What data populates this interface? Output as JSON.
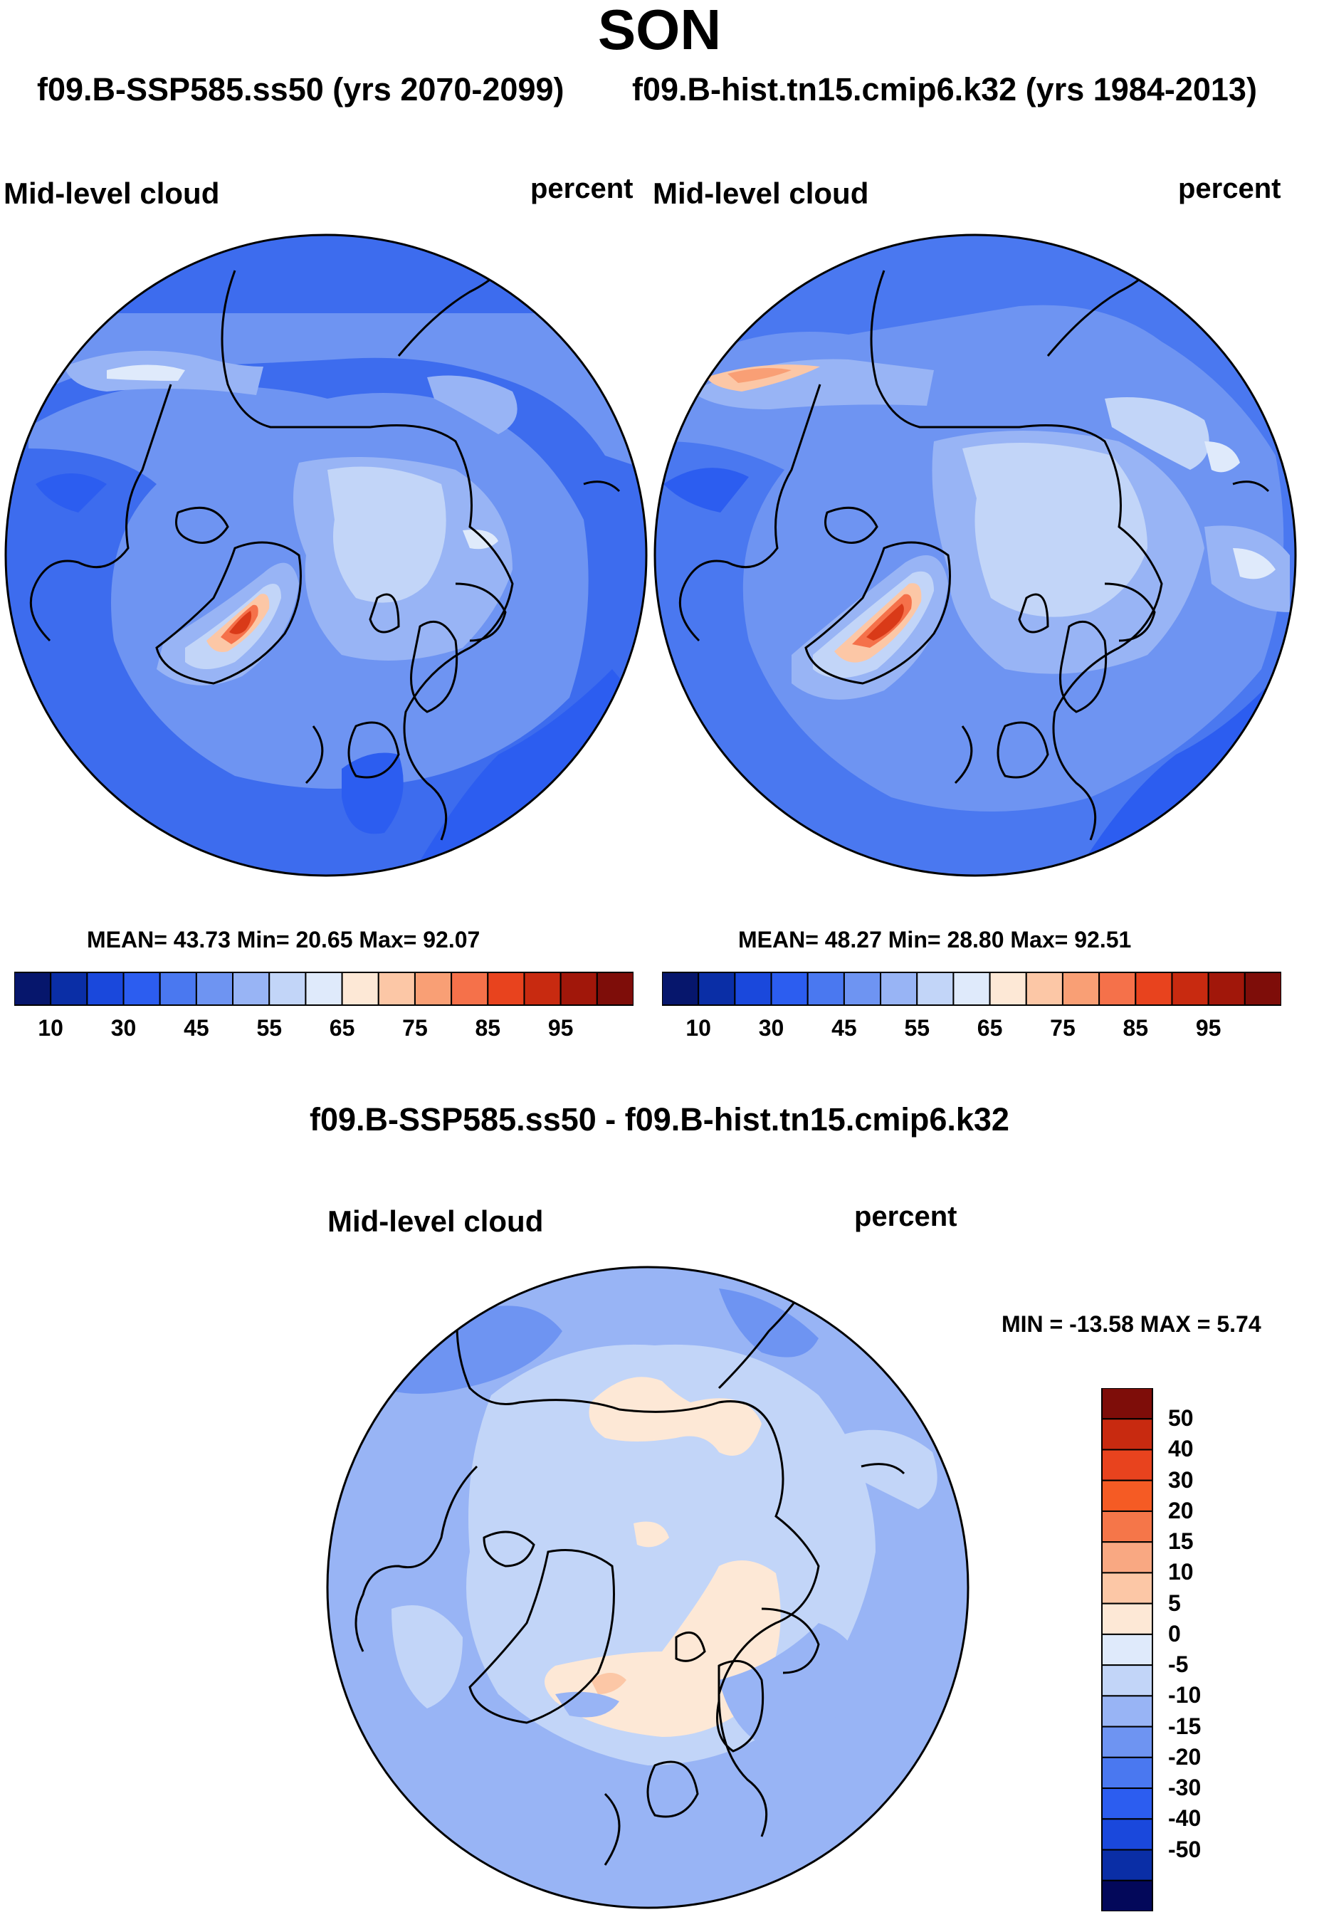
{
  "title": "SON",
  "subtitles": {
    "left": "f09.B-SSP585.ss50 (yrs 2070-2099)",
    "right": "f09.B-hist.tn15.cmip6.k32 (yrs 1984-2013)"
  },
  "panels": [
    {
      "variable": "Mid-level cloud",
      "units": "percent",
      "stats": "MEAN=  43.73  Min=  20.65  Max=  92.07"
    },
    {
      "variable": "Mid-level cloud",
      "units": "percent",
      "stats": "MEAN=  48.27  Min=  28.80  Max=  92.51"
    }
  ],
  "difference": {
    "title": "f09.B-SSP585.ss50 - f09.B-hist.tn15.cmip6.k32",
    "variable": "Mid-level cloud",
    "units": "percent",
    "stats": "MIN = -13.58 MAX =   5.74"
  },
  "colorbar_abs": {
    "colors": [
      "#06166c",
      "#0a2ea6",
      "#1a48dc",
      "#2c5df0",
      "#4a78f0",
      "#6e94f2",
      "#98b4f5",
      "#c2d5f8",
      "#dfeafb",
      "#fde8d6",
      "#fcc7a6",
      "#f99f75",
      "#f5714a",
      "#e8431e",
      "#c82a10",
      "#a1170a",
      "#7e0d09"
    ],
    "labels": [
      "10",
      "30",
      "45",
      "55",
      "65",
      "75",
      "85",
      "95"
    ]
  },
  "colorbar_diff": {
    "colors": [
      "#03085a",
      "#0a2ea6",
      "#1a48dc",
      "#2c5df0",
      "#4a78f0",
      "#6e94f2",
      "#98b4f5",
      "#c2d5f8",
      "#dfeafb",
      "#fde8d6",
      "#fcc7a6",
      "#f9a882",
      "#f57649",
      "#f55b24",
      "#e8431e",
      "#c82a10",
      "#7e0d09"
    ],
    "labels": [
      "50",
      "40",
      "30",
      "20",
      "15",
      "10",
      "5",
      "0",
      "-5",
      "-10",
      "-15",
      "-20",
      "-30",
      "-40",
      "-50"
    ]
  },
  "colors": {
    "ocean_blue": "#3d6cee",
    "mid_blue": "#6e94f2",
    "light_blue": "#98b4f5",
    "pale_blue": "#c2d5f8",
    "peach": "#fde8d6",
    "orange": "#f99f75",
    "red": "#d93a18",
    "coast": "#000000"
  }
}
